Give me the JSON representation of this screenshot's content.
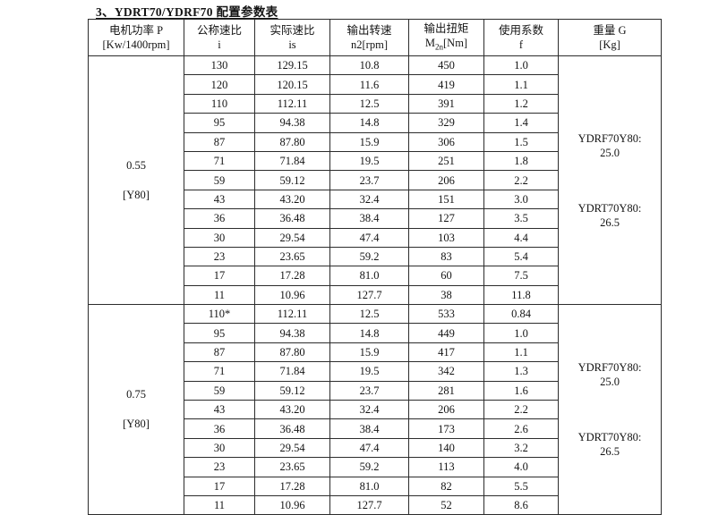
{
  "title": "3、YDRT70/YDRF70 配置参数表",
  "table": {
    "headers": [
      {
        "line1": "电机功率 P",
        "line2": "[Kw/1400rpm]"
      },
      {
        "line1": "公称速比",
        "line2": "i"
      },
      {
        "line1": "实际速比",
        "line2": "is"
      },
      {
        "line1": "输出转速",
        "line2": "n2[rpm]"
      },
      {
        "line1": "输出扭矩",
        "line2_prefix": "M",
        "line2_sub": "2n",
        "line2_suffix": "[Nm]"
      },
      {
        "line1": "使用系数",
        "line2": "f"
      },
      {
        "line1": "重量 G",
        "line2": "[Kg]"
      }
    ],
    "sections": [
      {
        "power": {
          "value": "0.55",
          "frame": "[Y80]"
        },
        "rows": [
          [
            "130",
            "129.15",
            "10.8",
            "450",
            "1.0"
          ],
          [
            "120",
            "120.15",
            "11.6",
            "419",
            "1.1"
          ],
          [
            "110",
            "112.11",
            "12.5",
            "391",
            "1.2"
          ],
          [
            "95",
            "94.38",
            "14.8",
            "329",
            "1.4"
          ],
          [
            "87",
            "87.80",
            "15.9",
            "306",
            "1.5"
          ],
          [
            "71",
            "71.84",
            "19.5",
            "251",
            "1.8"
          ],
          [
            "59",
            "59.12",
            "23.7",
            "206",
            "2.2"
          ],
          [
            "43",
            "43.20",
            "32.4",
            "151",
            "3.0"
          ],
          [
            "36",
            "36.48",
            "38.4",
            "127",
            "3.5"
          ],
          [
            "30",
            "29.54",
            "47.4",
            "103",
            "4.4"
          ],
          [
            "23",
            "23.65",
            "59.2",
            "83",
            "5.4"
          ],
          [
            "17",
            "17.28",
            "81.0",
            "60",
            "7.5"
          ],
          [
            "11",
            "10.96",
            "127.7",
            "38",
            "11.8"
          ]
        ],
        "weight": [
          {
            "model": "YDRF70Y80:",
            "value": "25.0"
          },
          {
            "model": "YDRT70Y80:",
            "value": "26.5"
          }
        ]
      },
      {
        "power": {
          "value": "0.75",
          "frame": "[Y80]"
        },
        "rows": [
          [
            "110*",
            "112.11",
            "12.5",
            "533",
            "0.84"
          ],
          [
            "95",
            "94.38",
            "14.8",
            "449",
            "1.0"
          ],
          [
            "87",
            "87.80",
            "15.9",
            "417",
            "1.1"
          ],
          [
            "71",
            "71.84",
            "19.5",
            "342",
            "1.3"
          ],
          [
            "59",
            "59.12",
            "23.7",
            "281",
            "1.6"
          ],
          [
            "43",
            "43.20",
            "32.4",
            "206",
            "2.2"
          ],
          [
            "36",
            "36.48",
            "38.4",
            "173",
            "2.6"
          ],
          [
            "30",
            "29.54",
            "47.4",
            "140",
            "3.2"
          ],
          [
            "23",
            "23.65",
            "59.2",
            "113",
            "4.0"
          ],
          [
            "17",
            "17.28",
            "81.0",
            "82",
            "5.5"
          ],
          [
            "11",
            "10.96",
            "127.7",
            "52",
            "8.6"
          ]
        ],
        "weight": [
          {
            "model": "YDRF70Y80:",
            "value": "25.0"
          },
          {
            "model": "YDRT70Y80:",
            "value": "26.5"
          }
        ]
      }
    ]
  }
}
